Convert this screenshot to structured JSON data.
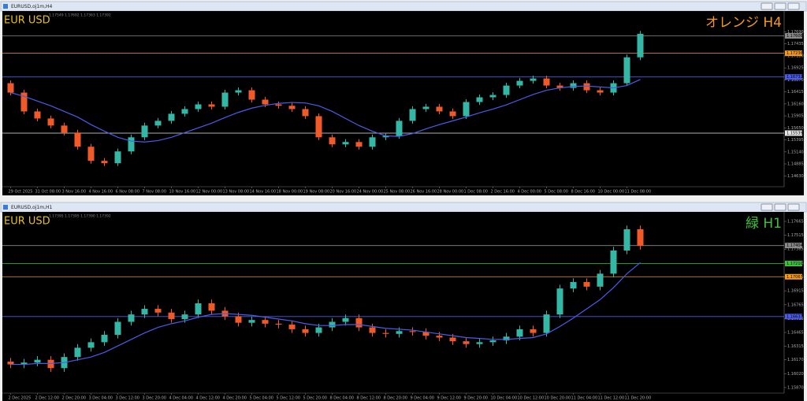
{
  "chart_data": [
    {
      "type": "candlestick",
      "window_title": "EURUSD,oj1m,H4",
      "symbol": "EUR USD",
      "header": "1.17549 1.17692 1.17363 1.17392",
      "title": "オレンジ H4",
      "title_color": "#f39a1e",
      "up_color": "#35b7a6",
      "down_color": "#ef5a28",
      "ma_color": "#4a5ce8",
      "categories": [
        "29 Oct 2025",
        null,
        "31 Oct 08:00",
        null,
        "3 Nov 16:00",
        null,
        "4 Nov 16:00",
        null,
        "6 Nov 08:00",
        null,
        "7 Nov 08:00",
        null,
        "10 Nov 16:00",
        null,
        "12 Nov 00:00",
        null,
        "13 Nov 08:00",
        null,
        "14 Nov 16:00",
        null,
        "18 Nov 00:00",
        null,
        "19 Nov 08:00",
        null,
        "20 Nov 16:00",
        null,
        "24 Nov 00:00",
        null,
        "25 Nov 08:00",
        null,
        "26 Nov 16:00",
        null,
        "28 Nov 00:00",
        null,
        "1 Dec 08:00",
        null,
        "2 Dec 16:00",
        null,
        "4 Dec 00:00",
        null,
        "5 Dec 08:00",
        null,
        "8 Dec 16:00",
        null,
        "10 Dec 00:00",
        null,
        "11 Dec 08:00",
        null
      ],
      "open": [
        1.166,
        1.164,
        1.16,
        1.1585,
        1.157,
        1.1555,
        1.1525,
        1.1495,
        1.149,
        1.1515,
        1.1545,
        1.157,
        1.158,
        1.1595,
        1.1605,
        1.1615,
        1.161,
        1.164,
        1.1645,
        1.1625,
        1.1615,
        1.1612,
        1.1605,
        1.159,
        1.1545,
        1.153,
        1.1535,
        1.1525,
        1.1545,
        1.1548,
        1.158,
        1.1605,
        1.161,
        1.16,
        1.159,
        1.162,
        1.163,
        1.1635,
        1.1655,
        1.1665,
        1.167,
        1.1655,
        1.165,
        1.166,
        1.1645,
        1.164,
        1.166,
        1.1715
      ],
      "high": [
        1.1666,
        1.1646,
        1.1606,
        1.1591,
        1.1576,
        1.1561,
        1.1531,
        1.1501,
        1.1521,
        1.1551,
        1.1576,
        1.1586,
        1.1601,
        1.1611,
        1.1621,
        1.1621,
        1.1646,
        1.1651,
        1.1651,
        1.1631,
        1.1621,
        1.1618,
        1.1611,
        1.1596,
        1.1551,
        1.1541,
        1.1541,
        1.1551,
        1.1554,
        1.1586,
        1.1611,
        1.1616,
        1.1616,
        1.1606,
        1.1626,
        1.1636,
        1.1641,
        1.1661,
        1.1671,
        1.1676,
        1.1676,
        1.1661,
        1.1666,
        1.1666,
        1.1651,
        1.1666,
        1.1721,
        1.1771
      ],
      "low": [
        1.1634,
        1.1594,
        1.1579,
        1.1564,
        1.1549,
        1.1519,
        1.1489,
        1.1484,
        1.1484,
        1.1509,
        1.1539,
        1.1564,
        1.1574,
        1.1589,
        1.1599,
        1.1604,
        1.1604,
        1.1634,
        1.1619,
        1.1609,
        1.1606,
        1.1599,
        1.1584,
        1.1539,
        1.1524,
        1.1524,
        1.1519,
        1.1519,
        1.1539,
        1.1542,
        1.1574,
        1.1599,
        1.1594,
        1.1584,
        1.1584,
        1.1614,
        1.1624,
        1.1629,
        1.1649,
        1.1659,
        1.1649,
        1.1644,
        1.1644,
        1.1639,
        1.1634,
        1.1634,
        1.1654,
        1.1709
      ],
      "close": [
        1.164,
        1.16,
        1.1585,
        1.157,
        1.1555,
        1.1525,
        1.1495,
        1.149,
        1.1515,
        1.1545,
        1.157,
        1.158,
        1.1595,
        1.1605,
        1.1615,
        1.161,
        1.164,
        1.1645,
        1.1625,
        1.1615,
        1.1612,
        1.1605,
        1.159,
        1.1545,
        1.153,
        1.1535,
        1.1525,
        1.1545,
        1.1548,
        1.158,
        1.1605,
        1.161,
        1.16,
        1.159,
        1.162,
        1.163,
        1.1635,
        1.1655,
        1.1665,
        1.167,
        1.1655,
        1.165,
        1.166,
        1.1645,
        1.164,
        1.166,
        1.1715,
        1.1765
      ],
      "ma": [
        1.164,
        1.1632,
        1.1622,
        1.1612,
        1.16,
        1.1588,
        1.1572,
        1.1558,
        1.1545,
        1.1537,
        1.1535,
        1.1538,
        1.1545,
        1.1555,
        1.1565,
        1.1575,
        1.1587,
        1.1598,
        1.1607,
        1.1613,
        1.1617,
        1.1619,
        1.1618,
        1.1612,
        1.16,
        1.1585,
        1.157,
        1.1558,
        1.1548,
        1.1547,
        1.1553,
        1.1563,
        1.1572,
        1.158,
        1.1588,
        1.1597,
        1.1605,
        1.1614,
        1.1625,
        1.1636,
        1.1645,
        1.165,
        1.1653,
        1.1654,
        1.1652,
        1.165,
        1.1655,
        1.1668
      ],
      "ylim": [
        1.144,
        1.181
      ],
      "yticks": [
        {
          "value": 1.1463,
          "label": "1.14630"
        },
        {
          "value": 1.14885,
          "label": "1.14885"
        },
        {
          "value": 1.1514,
          "label": "1.15140"
        },
        {
          "value": 1.15395,
          "label": "1.15395"
        },
        {
          "value": 1.1565,
          "label": "1.15650"
        },
        {
          "value": 1.15905,
          "label": "1.15905"
        },
        {
          "value": 1.1616,
          "label": "1.16160"
        },
        {
          "value": 1.16415,
          "label": "1.16415"
        },
        {
          "value": 1.1667,
          "label": "1.16670"
        },
        {
          "value": 1.16925,
          "label": "1.16925"
        },
        {
          "value": 1.1718,
          "label": "1.17180"
        },
        {
          "value": 1.17435,
          "label": "1.17435"
        },
        {
          "value": 1.1769,
          "label": "1.17690"
        }
      ],
      "levels": [
        {
          "value": 1.17606,
          "label": "1.17606",
          "color": "#8a8a8a"
        },
        {
          "value": 1.17236,
          "label": "1.17236",
          "color": "#f39a1e"
        },
        {
          "value": 1.16732,
          "label": "1.16732",
          "color": "#4a5ce8"
        },
        {
          "value": 1.15539,
          "label": "1.15539",
          "color": "#e8e8e8"
        }
      ]
    },
    {
      "type": "candlestick",
      "window_title": "EURUSD,oj1m,H1",
      "symbol": "EUR USD",
      "header": "1.17395 1.17395 1.17390 1.17392",
      "title": "緑 H1",
      "title_color": "#3ec23e",
      "up_color": "#35b7a6",
      "down_color": "#ef5a28",
      "ma_color": "#4a5ce8",
      "categories": [
        "2 Dec 2025",
        null,
        "2 Dec 12:00",
        null,
        "2 Dec 20:00",
        null,
        "3 Dec 04:00",
        null,
        "3 Dec 12:00",
        null,
        "3 Dec 20:00",
        null,
        "4 Dec 04:00",
        null,
        "4 Dec 12:00",
        null,
        "4 Dec 20:00",
        null,
        "5 Dec 04:00",
        null,
        "5 Dec 12:00",
        null,
        "5 Dec 20:00",
        null,
        "8 Dec 04:00",
        null,
        "8 Dec 12:00",
        null,
        "8 Dec 20:00",
        null,
        "9 Dec 04:00",
        null,
        "9 Dec 12:00",
        null,
        "9 Dec 20:00",
        null,
        "10 Dec 04:00",
        null,
        "10 Dec 12:00",
        null,
        "10 Dec 20:00",
        null,
        "11 Dec 04:00",
        null,
        "11 Dec 12:00",
        null,
        "11 Dec 20:00",
        null
      ],
      "open": [
        1.1615,
        1.1612,
        1.1614,
        1.1617,
        1.1608,
        1.162,
        1.163,
        1.1636,
        1.1644,
        1.1658,
        1.1666,
        1.1672,
        1.1668,
        1.1661,
        1.1666,
        1.1678,
        1.167,
        1.1664,
        1.1657,
        1.166,
        1.1656,
        1.1655,
        1.165,
        1.1646,
        1.1652,
        1.1658,
        1.1662,
        1.1652,
        1.1646,
        1.1645,
        1.1648,
        1.1647,
        1.1643,
        1.1641,
        1.1637,
        1.1634,
        1.1636,
        1.1638,
        1.1642,
        1.165,
        1.1646,
        1.1666,
        1.1694,
        1.1701,
        1.1696,
        1.171,
        1.1735,
        1.1758
      ],
      "high": [
        1.1619,
        1.1618,
        1.1621,
        1.1621,
        1.1624,
        1.1634,
        1.164,
        1.1648,
        1.1662,
        1.167,
        1.1676,
        1.1676,
        1.1672,
        1.167,
        1.1682,
        1.1682,
        1.1674,
        1.1668,
        1.1664,
        1.1664,
        1.166,
        1.1659,
        1.1654,
        1.1656,
        1.1662,
        1.1666,
        1.1666,
        1.1656,
        1.165,
        1.1652,
        1.1652,
        1.1651,
        1.1647,
        1.1645,
        1.1641,
        1.164,
        1.1642,
        1.1646,
        1.1654,
        1.1654,
        1.167,
        1.1698,
        1.1705,
        1.1705,
        1.1714,
        1.1739,
        1.1762,
        1.1762
      ],
      "low": [
        1.1608,
        1.1608,
        1.161,
        1.1604,
        1.1604,
        1.1616,
        1.1626,
        1.1632,
        1.164,
        1.1654,
        1.1662,
        1.1664,
        1.1657,
        1.1657,
        1.1662,
        1.1666,
        1.166,
        1.1653,
        1.1653,
        1.1652,
        1.1651,
        1.1646,
        1.1642,
        1.1642,
        1.1648,
        1.1654,
        1.1648,
        1.1642,
        1.1641,
        1.1641,
        1.1643,
        1.1639,
        1.1637,
        1.1633,
        1.163,
        1.163,
        1.1632,
        1.1634,
        1.1638,
        1.1642,
        1.1642,
        1.1662,
        1.169,
        1.1692,
        1.1692,
        1.1706,
        1.1731,
        1.1736
      ],
      "close": [
        1.1612,
        1.1614,
        1.1617,
        1.1608,
        1.162,
        1.163,
        1.1636,
        1.1644,
        1.1658,
        1.1666,
        1.1672,
        1.1668,
        1.1661,
        1.1666,
        1.1678,
        1.167,
        1.1664,
        1.1657,
        1.166,
        1.1656,
        1.1655,
        1.165,
        1.1646,
        1.1652,
        1.1658,
        1.1662,
        1.1652,
        1.1646,
        1.1645,
        1.1648,
        1.1647,
        1.1643,
        1.1641,
        1.1637,
        1.1634,
        1.1636,
        1.1638,
        1.1642,
        1.165,
        1.1646,
        1.1666,
        1.1694,
        1.1701,
        1.1696,
        1.171,
        1.1735,
        1.1758,
        1.174
      ],
      "ma": [
        1.1612,
        1.1612,
        1.1613,
        1.1613,
        1.1614,
        1.1617,
        1.162,
        1.1625,
        1.1632,
        1.1639,
        1.1646,
        1.1652,
        1.1656,
        1.1659,
        1.1663,
        1.1666,
        1.1667,
        1.1666,
        1.1665,
        1.1663,
        1.1661,
        1.1659,
        1.1656,
        1.1654,
        1.1654,
        1.1655,
        1.1655,
        1.1653,
        1.1651,
        1.165,
        1.1649,
        1.1647,
        1.1645,
        1.1643,
        1.1641,
        1.164,
        1.1639,
        1.1639,
        1.164,
        1.1641,
        1.1645,
        1.1653,
        1.1662,
        1.1672,
        1.1682,
        1.1695,
        1.171,
        1.1722
      ],
      "ylim": [
        1.1581,
        1.1775
      ],
      "yticks": [
        {
          "value": 1.1587,
          "label": "1.15870"
        },
        {
          "value": 1.1602,
          "label": "1.16020"
        },
        {
          "value": 1.1617,
          "label": "1.16170"
        },
        {
          "value": 1.16315,
          "label": "1.16315"
        },
        {
          "value": 1.16465,
          "label": "1.16465"
        },
        {
          "value": 1.16615,
          "label": "1.16615"
        },
        {
          "value": 1.16765,
          "label": "1.16765"
        },
        {
          "value": 1.16915,
          "label": "1.16915"
        },
        {
          "value": 1.17065,
          "label": "1.17065"
        },
        {
          "value": 1.17215,
          "label": "1.17215"
        },
        {
          "value": 1.17365,
          "label": "1.17365"
        },
        {
          "value": 1.17515,
          "label": "1.17515"
        },
        {
          "value": 1.17665,
          "label": "1.17665"
        }
      ],
      "levels": [
        {
          "value": 1.17404,
          "label": "1.17404",
          "color": "#8a8a8a"
        },
        {
          "value": 1.1721,
          "label": "1.17210",
          "color": "#3ec23e"
        },
        {
          "value": 1.17067,
          "label": "1.17067",
          "color": "#f39a1e"
        },
        {
          "value": 1.16637,
          "label": "1.16637",
          "color": "#4a5ce8"
        }
      ]
    }
  ]
}
